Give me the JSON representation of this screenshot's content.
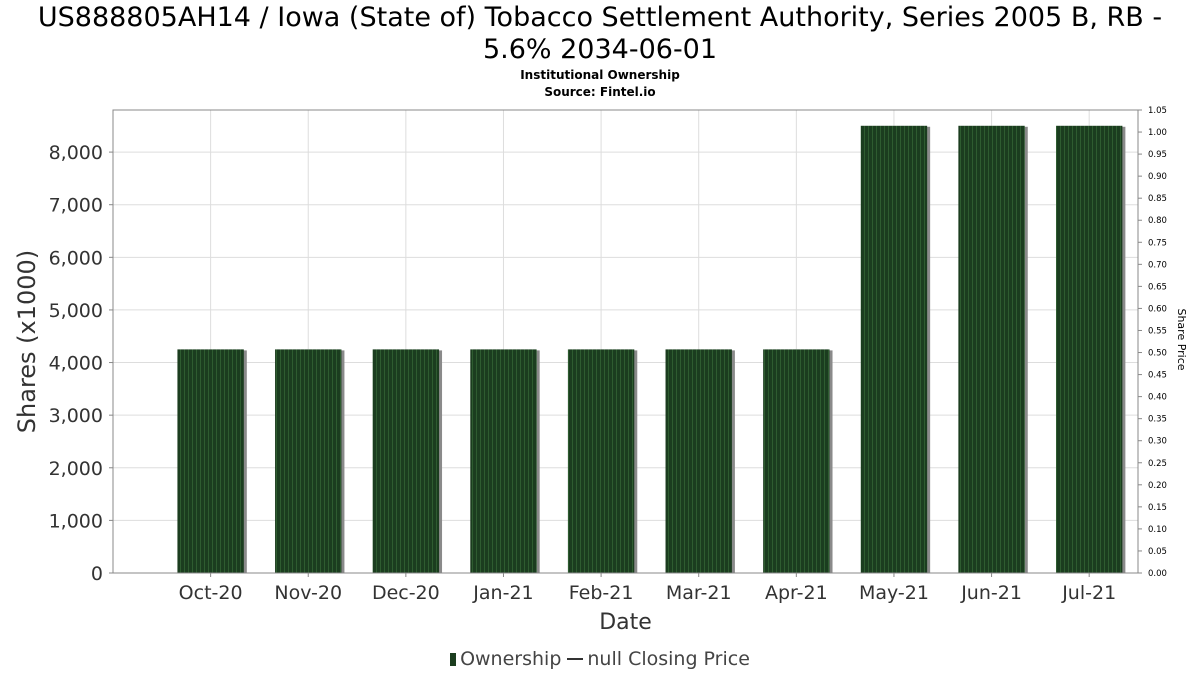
{
  "header": {
    "title_line1": "US888805AH14 / Iowa (State of) Tobacco Settlement Authority, Series 2005 B, RB -",
    "title_line2": "5.6% 2034-06-01",
    "subtitle": "Institutional Ownership",
    "source": "Source: Fintel.io"
  },
  "legend": {
    "ownership_label": "Ownership",
    "price_label": "null Closing Price"
  },
  "colors": {
    "bar": "#1b3d1f",
    "bar_stripe": "#2e5c30",
    "bar_shadow": "#8a8a8a",
    "grid": "#dddddd",
    "axis": "#888888"
  },
  "chart_data": {
    "type": "bar",
    "title": "US888805AH14 / Iowa (State of) Tobacco Settlement Authority, Series 2005 B, RB - 5.6% 2034-06-01",
    "subtitle": "Institutional Ownership",
    "xlabel": "Date",
    "ylabel": "Shares (x1000)",
    "y2label": "Share Price",
    "categories": [
      "Oct-20",
      "Nov-20",
      "Dec-20",
      "Jan-21",
      "Feb-21",
      "Mar-21",
      "Apr-21",
      "May-21",
      "Jun-21",
      "Jul-21"
    ],
    "series": [
      {
        "name": "Ownership",
        "values": [
          4250,
          4250,
          4250,
          4250,
          4250,
          4250,
          4250,
          8500,
          8500,
          8500
        ]
      }
    ],
    "ylim": [
      0,
      8800
    ],
    "yticks": [
      0,
      1000,
      2000,
      3000,
      4000,
      5000,
      6000,
      7000,
      8000
    ],
    "ytick_labels": [
      "0",
      "1,000",
      "2,000",
      "3,000",
      "4,000",
      "5,000",
      "6,000",
      "7,000",
      "8,000"
    ],
    "y2lim": [
      0,
      1.05
    ],
    "y2ticks": [
      "0.00",
      "0.05",
      "0.10",
      "0.15",
      "0.20",
      "0.25",
      "0.30",
      "0.35",
      "0.40",
      "0.45",
      "0.50",
      "0.55",
      "0.60",
      "0.65",
      "0.70",
      "0.75",
      "0.80",
      "0.85",
      "0.90",
      "0.95",
      "1.00",
      "1.05"
    ],
    "grid": true,
    "legend_position": "bottom"
  }
}
